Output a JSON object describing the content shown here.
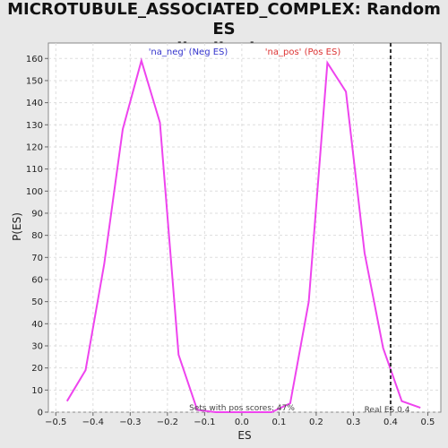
{
  "chart_data": {
    "type": "line",
    "title_line1": "MICROTUBULE_ASSOCIATED_COMPLEX: Random ES",
    "title_line2": "distribution",
    "xlabel": "ES",
    "ylabel": "P(ES)",
    "xlim": [
      -0.52,
      0.535
    ],
    "ylim": [
      0,
      167
    ],
    "xticks": [
      -0.5,
      -0.4,
      -0.3,
      -0.2,
      -0.1,
      0.0,
      0.1,
      0.2,
      0.3,
      0.4,
      0.5
    ],
    "xtick_labels": [
      "−0.5",
      "−0.4",
      "−0.3",
      "−0.2",
      "−0.1",
      "0.0",
      "0.1",
      "0.2",
      "0.3",
      "0.4",
      "0.5"
    ],
    "yticks": [
      0,
      10,
      20,
      30,
      40,
      50,
      60,
      70,
      80,
      90,
      100,
      110,
      120,
      130,
      140,
      150,
      160
    ],
    "grid": true,
    "line_color": "#ee44ee",
    "series": [
      {
        "x": [
          -0.47,
          -0.42,
          -0.37,
          -0.32,
          -0.27,
          -0.22,
          -0.17,
          -0.12,
          -0.07,
          -0.02,
          0.03,
          0.08,
          0.13,
          0.18,
          0.23,
          0.28,
          0.33,
          0.38,
          0.43,
          0.48
        ],
        "values": [
          5,
          19,
          67,
          128,
          159,
          131,
          26,
          1,
          0,
          0,
          0,
          0,
          4,
          50,
          158,
          145,
          72,
          29,
          5,
          2
        ]
      }
    ],
    "real_es": 0.4,
    "legend": {
      "neg_label": "'na_neg' (Neg ES)",
      "neg_color": "#3333cc",
      "pos_label": "'na_pos' (Pos ES)",
      "pos_color": "#dd3333"
    },
    "annotations": {
      "pos_scores": "Sets with pos scores: 47%",
      "real_es_label": "Real ES 0.4"
    }
  }
}
